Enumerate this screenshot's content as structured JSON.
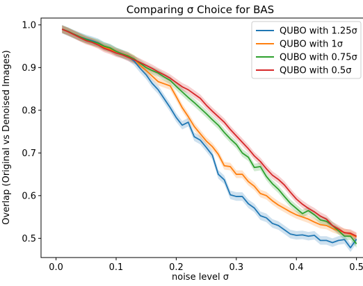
{
  "chart_data": {
    "type": "line",
    "title": "Comparing σ Choice for BAS",
    "xlabel": "noise level σ",
    "ylabel": "Overlap (Original vs Denoised Images)",
    "xlim": [
      -0.025,
      0.512
    ],
    "ylim": [
      0.455,
      1.016
    ],
    "xticks": [
      0.0,
      0.1,
      0.2,
      0.3,
      0.4,
      0.5
    ],
    "xtick_labels": [
      "0.0",
      "0.1",
      "0.2",
      "0.3",
      "0.4",
      "0.5"
    ],
    "yticks": [
      0.5,
      0.6,
      0.7,
      0.8,
      0.9,
      1.0
    ],
    "ytick_labels": [
      "0.5",
      "0.6",
      "0.7",
      "0.8",
      "0.9",
      "1.0"
    ],
    "grid": false,
    "legend_position": "top-right",
    "x": [
      0.01,
      0.02,
      0.03,
      0.04,
      0.05,
      0.06,
      0.07,
      0.08,
      0.09,
      0.1,
      0.11,
      0.12,
      0.13,
      0.14,
      0.15,
      0.16,
      0.17,
      0.18,
      0.19,
      0.2,
      0.21,
      0.22,
      0.23,
      0.24,
      0.25,
      0.26,
      0.27,
      0.28,
      0.29,
      0.3,
      0.31,
      0.32,
      0.33,
      0.34,
      0.35,
      0.36,
      0.37,
      0.38,
      0.39,
      0.4,
      0.41,
      0.42,
      0.43,
      0.44,
      0.45,
      0.46,
      0.47,
      0.48,
      0.49,
      0.5
    ],
    "series": [
      {
        "name": "QUBO with 1.25σ",
        "color": "#1f77b4",
        "values": [
          0.99,
          0.984,
          0.978,
          0.972,
          0.967,
          0.963,
          0.958,
          0.95,
          0.945,
          0.937,
          0.932,
          0.926,
          0.915,
          0.898,
          0.883,
          0.863,
          0.848,
          0.827,
          0.806,
          0.783,
          0.765,
          0.772,
          0.738,
          0.73,
          0.713,
          0.695,
          0.65,
          0.637,
          0.602,
          0.598,
          0.598,
          0.581,
          0.571,
          0.553,
          0.548,
          0.535,
          0.53,
          0.52,
          0.51,
          0.507,
          0.508,
          0.505,
          0.507,
          0.495,
          0.495,
          0.49,
          0.495,
          0.497,
          0.478,
          0.498
        ],
        "band": 0.01
      },
      {
        "name": "QUBO with 1σ",
        "color": "#ff7f0e",
        "values": [
          0.99,
          0.984,
          0.978,
          0.971,
          0.965,
          0.96,
          0.955,
          0.948,
          0.943,
          0.937,
          0.932,
          0.928,
          0.92,
          0.905,
          0.893,
          0.88,
          0.867,
          0.862,
          0.857,
          0.832,
          0.806,
          0.785,
          0.762,
          0.745,
          0.728,
          0.715,
          0.697,
          0.67,
          0.668,
          0.65,
          0.65,
          0.633,
          0.622,
          0.605,
          0.6,
          0.588,
          0.578,
          0.57,
          0.562,
          0.555,
          0.55,
          0.545,
          0.538,
          0.532,
          0.53,
          0.523,
          0.518,
          0.514,
          0.51,
          0.503
        ],
        "band": 0.009
      },
      {
        "name": "QUBO with 0.75σ",
        "color": "#2ca02c",
        "values": [
          0.99,
          0.985,
          0.978,
          0.972,
          0.966,
          0.961,
          0.957,
          0.95,
          0.946,
          0.938,
          0.932,
          0.927,
          0.92,
          0.91,
          0.9,
          0.893,
          0.887,
          0.878,
          0.87,
          0.856,
          0.843,
          0.83,
          0.818,
          0.805,
          0.792,
          0.778,
          0.765,
          0.748,
          0.733,
          0.72,
          0.7,
          0.69,
          0.666,
          0.668,
          0.645,
          0.628,
          0.615,
          0.598,
          0.582,
          0.57,
          0.558,
          0.565,
          0.555,
          0.543,
          0.54,
          0.53,
          0.518,
          0.505,
          0.505,
          0.487
        ],
        "band": 0.009
      },
      {
        "name": "QUBO with 0.5σ",
        "color": "#d62728",
        "values": [
          0.99,
          0.984,
          0.977,
          0.97,
          0.963,
          0.959,
          0.953,
          0.945,
          0.94,
          0.934,
          0.93,
          0.924,
          0.918,
          0.912,
          0.905,
          0.898,
          0.89,
          0.883,
          0.875,
          0.865,
          0.855,
          0.848,
          0.838,
          0.828,
          0.812,
          0.798,
          0.785,
          0.772,
          0.755,
          0.74,
          0.725,
          0.71,
          0.693,
          0.68,
          0.663,
          0.648,
          0.638,
          0.625,
          0.608,
          0.592,
          0.58,
          0.57,
          0.562,
          0.552,
          0.545,
          0.53,
          0.522,
          0.513,
          0.512,
          0.505
        ],
        "band": 0.009
      }
    ]
  }
}
